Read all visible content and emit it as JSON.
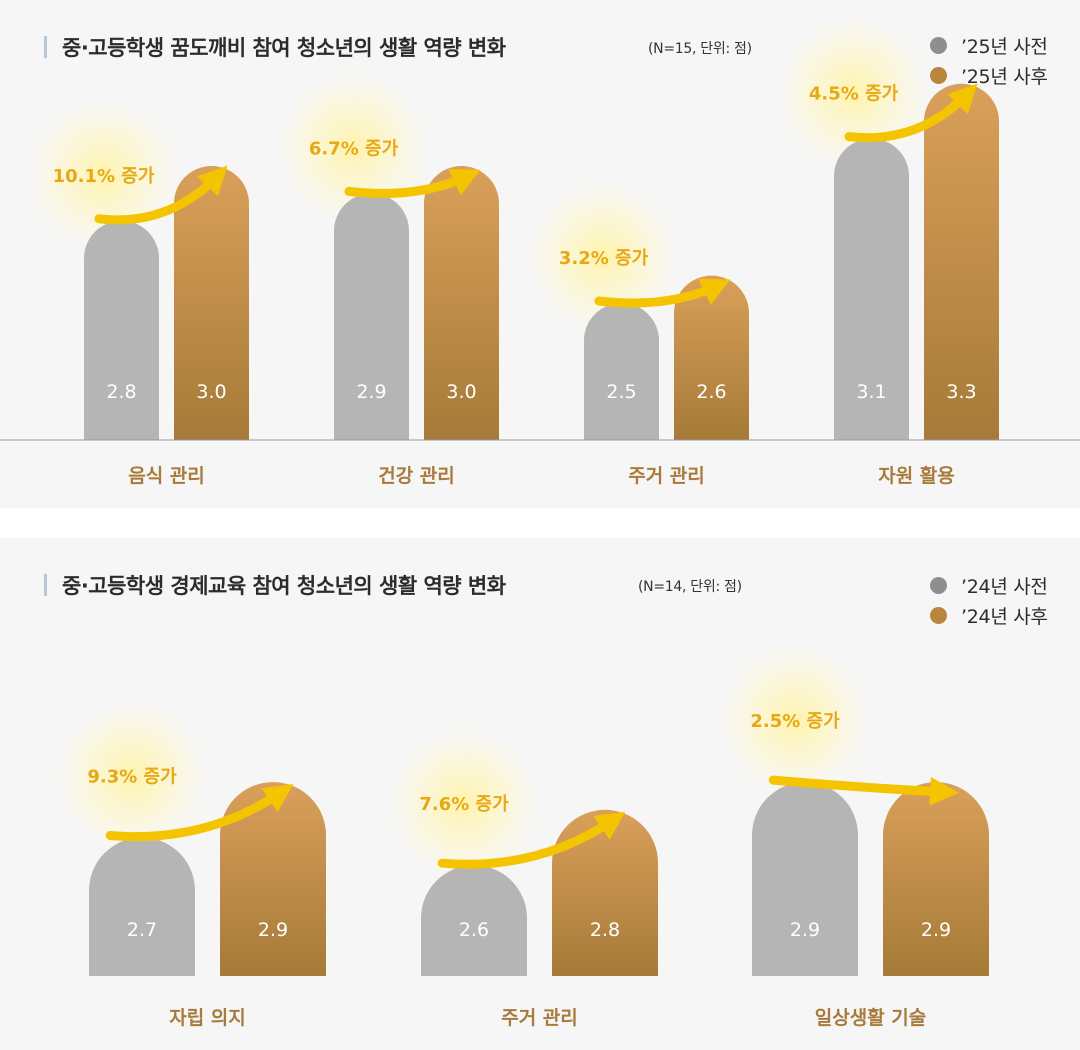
{
  "colors": {
    "pre": "#b5b5b5",
    "post_top": "#d9a05a",
    "post_bottom": "#a67a38",
    "increase_label": "#e8a814",
    "category_label": "#a87a3c",
    "arrow": "#f5c400",
    "baseline": "#9a9a9a"
  },
  "chart_data": [
    {
      "type": "bar",
      "title": "중·고등학생 꿈도깨비 참여 청소년의  생활 역량 변화",
      "note": "(N=15, 단위: 점)",
      "categories": [
        "음식 관리",
        "건강 관리",
        "주거 관리",
        "자원 활용"
      ],
      "series": [
        {
          "name": "’25년 사전",
          "values": [
            2.8,
            2.9,
            2.5,
            3.1
          ],
          "labels": [
            "2.8",
            "2.9",
            "2.5",
            "3.1"
          ]
        },
        {
          "name": "’25년 사후",
          "values": [
            3.0,
            3.0,
            2.6,
            3.3
          ],
          "labels": [
            "3.0",
            "3.0",
            "2.6",
            "3.3"
          ]
        }
      ],
      "annotations": [
        "10.1% 증가",
        "6.7% 증가",
        "3.2% 증가",
        "4.5% 증가"
      ],
      "legend": "top-right",
      "grid": false
    },
    {
      "type": "bar",
      "title": "중·고등학생 경제교육 참여 청소년의 생활 역량 변화",
      "note": "(N=14, 단위: 점)",
      "categories": [
        "자립 의지",
        "주거 관리",
        "일상생활 기술"
      ],
      "series": [
        {
          "name": "’24년 사전",
          "values": [
            2.7,
            2.6,
            2.9
          ],
          "labels": [
            "2.7",
            "2.6",
            "2.9"
          ]
        },
        {
          "name": "’24년 사후",
          "values": [
            2.9,
            2.8,
            2.9
          ],
          "labels": [
            "2.9",
            "2.8",
            "2.9"
          ]
        }
      ],
      "annotations": [
        "9.3% 증가",
        "7.6% 증가",
        "2.5% 증가"
      ],
      "legend": "top-right",
      "grid": false
    }
  ]
}
